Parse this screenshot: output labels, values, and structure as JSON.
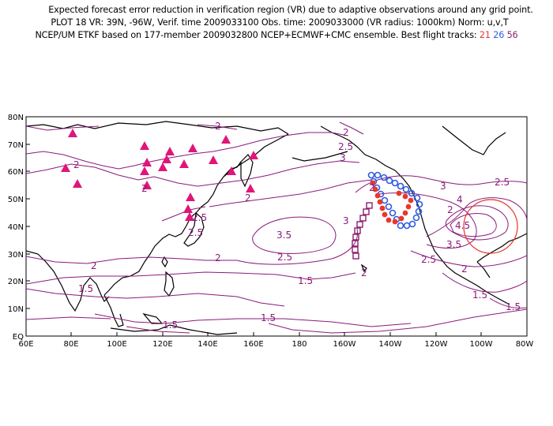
{
  "header": {
    "line1": "Expected forecast error reduction in verification region (VR) due to adaptive observations around any grid point.",
    "line2": "PLOT 18 VR: 39N, -96W, Verif. time 2009033100 Obs. time: 2009033000 (VR radius: 1000km) Norm: u,v,T",
    "line3_prefix": "NCEP/UM ETKF based on 177-member 2009032800 NCEP+ECMWF+CMC ensemble. Best flight tracks:",
    "track_21": "21",
    "track_26": "26",
    "track_56": "56"
  },
  "axes": {
    "lat_labels": [
      "80N",
      "70N",
      "60N",
      "50N",
      "40N",
      "30N",
      "20N",
      "10N",
      "EQ"
    ],
    "lon_labels": [
      "60E",
      "80E",
      "100E",
      "120E",
      "140E",
      "160E",
      "180",
      "160W",
      "140W",
      "120W",
      "100W",
      "80W"
    ]
  },
  "contour_labels": [
    "2",
    "2",
    "2",
    "2",
    "2",
    "2.5",
    "2.5",
    "3",
    "2",
    "2.5",
    "3",
    "3.5",
    "2.5",
    "2",
    "1.5",
    "1.5",
    "1.5",
    "1.5",
    "2",
    "2",
    "3",
    "4",
    "4.5",
    "2.5",
    "3.5",
    "2",
    "1.5",
    "1.5",
    "2.5",
    "2"
  ],
  "colors": {
    "contour": "#8b1a7a",
    "coast": "#000000",
    "track_21": "#e8372c",
    "track_26": "#2f5be0",
    "track_56": "#8a1f6b",
    "triangles": "#e0157a",
    "vr_circle": "#e8372c"
  },
  "verification_region": {
    "lat": 39,
    "lon": -96,
    "radius_km": 1000
  }
}
